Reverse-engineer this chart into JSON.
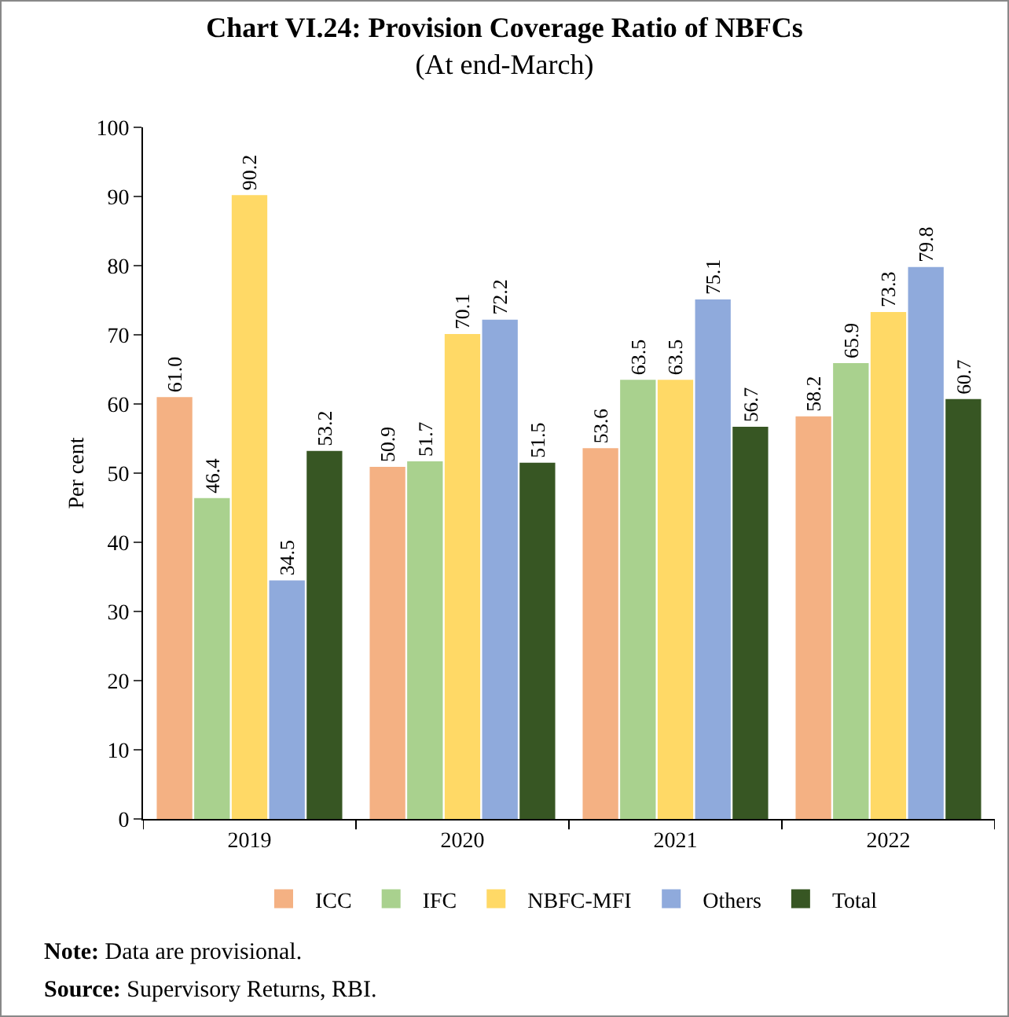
{
  "chart_data": {
    "type": "bar",
    "title": "Chart VI.24: Provision Coverage Ratio of NBFCs",
    "subtitle": "(At end-March)",
    "ylabel": "Per cent",
    "categories": [
      "2019",
      "2020",
      "2021",
      "2022"
    ],
    "series": [
      {
        "name": "ICC",
        "color": "#f4b183",
        "values": [
          61.0,
          50.9,
          53.6,
          58.2
        ],
        "value_labels": [
          "61.0",
          "50.9",
          "53.6",
          "58.2"
        ]
      },
      {
        "name": "IFC",
        "color": "#a9d18e",
        "values": [
          46.4,
          51.7,
          63.5,
          65.9
        ],
        "value_labels": [
          "46.4",
          "51.7",
          "63.5",
          "65.9"
        ]
      },
      {
        "name": "NBFC-MFI",
        "color": "#ffd966",
        "values": [
          90.2,
          70.1,
          63.5,
          73.3
        ],
        "value_labels": [
          "90.2",
          "70.1",
          "63.5",
          "73.3"
        ]
      },
      {
        "name": "Others",
        "color": "#8faadc",
        "values": [
          34.5,
          72.2,
          75.1,
          79.8
        ],
        "value_labels": [
          "34.5",
          "72.2",
          "75.1",
          "79.8"
        ]
      },
      {
        "name": "Total",
        "color": "#375623",
        "values": [
          53.2,
          51.5,
          56.7,
          60.7
        ],
        "value_labels": [
          "53.2",
          "51.5",
          "56.7",
          "60.7"
        ]
      }
    ],
    "ylim": [
      0,
      100
    ],
    "yticks": [
      0,
      10,
      20,
      30,
      40,
      50,
      60,
      70,
      80,
      90,
      100
    ],
    "grid": false,
    "legend": "bottom",
    "annotations": [
      "Note: Data are provisional.",
      "Source: Supervisory Returns, RBI."
    ]
  }
}
